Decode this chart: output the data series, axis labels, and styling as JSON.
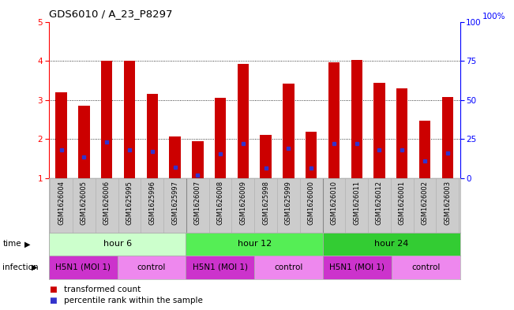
{
  "title": "GDS6010 / A_23_P8297",
  "samples": [
    "GSM1626004",
    "GSM1626005",
    "GSM1626006",
    "GSM1625995",
    "GSM1625996",
    "GSM1625997",
    "GSM1626007",
    "GSM1626008",
    "GSM1626009",
    "GSM1625998",
    "GSM1625999",
    "GSM1626000",
    "GSM1626010",
    "GSM1626011",
    "GSM1626012",
    "GSM1626001",
    "GSM1626002",
    "GSM1626003"
  ],
  "red_values": [
    3.2,
    2.85,
    4.0,
    4.0,
    3.15,
    2.07,
    1.95,
    3.05,
    3.93,
    2.1,
    3.42,
    2.18,
    3.97,
    4.02,
    3.43,
    3.3,
    2.47,
    3.07
  ],
  "blue_values": [
    1.72,
    1.55,
    1.93,
    1.72,
    1.68,
    1.28,
    1.08,
    1.63,
    1.88,
    1.27,
    1.76,
    1.27,
    1.88,
    1.88,
    1.72,
    1.72,
    1.45,
    1.65
  ],
  "ylim_left": [
    1,
    5
  ],
  "ylim_right": [
    0,
    100
  ],
  "yticks_left": [
    1,
    2,
    3,
    4,
    5
  ],
  "yticks_right": [
    0,
    25,
    50,
    75,
    100
  ],
  "bar_color": "#cc0000",
  "blue_color": "#3333cc",
  "bg_color": "#ffffff",
  "grid_color": "#000000",
  "time_groups": [
    {
      "label": "hour 6",
      "start": 0,
      "end": 6,
      "color": "#ccffcc"
    },
    {
      "label": "hour 12",
      "start": 6,
      "end": 12,
      "color": "#55ee55"
    },
    {
      "label": "hour 24",
      "start": 12,
      "end": 18,
      "color": "#33cc33"
    }
  ],
  "infection_groups": [
    {
      "label": "H5N1 (MOI 1)",
      "start": 0,
      "end": 3,
      "color": "#cc33cc"
    },
    {
      "label": "control",
      "start": 3,
      "end": 6,
      "color": "#ee88ee"
    },
    {
      "label": "H5N1 (MOI 1)",
      "start": 6,
      "end": 9,
      "color": "#cc33cc"
    },
    {
      "label": "control",
      "start": 9,
      "end": 12,
      "color": "#ee88ee"
    },
    {
      "label": "H5N1 (MOI 1)",
      "start": 12,
      "end": 15,
      "color": "#cc33cc"
    },
    {
      "label": "control",
      "start": 15,
      "end": 18,
      "color": "#ee88ee"
    }
  ],
  "legend_items": [
    {
      "label": "transformed count",
      "color": "#cc0000"
    },
    {
      "label": "percentile rank within the sample",
      "color": "#3333cc"
    }
  ],
  "bar_width": 0.5,
  "xlim": [
    -0.55,
    17.55
  ]
}
